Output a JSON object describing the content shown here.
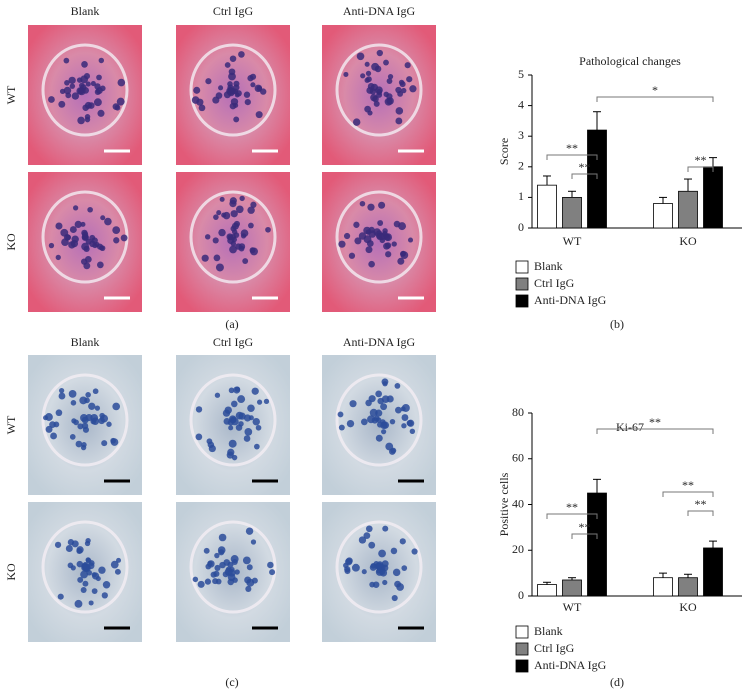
{
  "figure": {
    "panel_labels": [
      "(a)",
      "(b)",
      "(c)",
      "(d)"
    ],
    "micrographs": [
      {
        "columns": [
          "Blank",
          "Ctrl IgG",
          "Anti-DNA IgG"
        ],
        "rows": [
          "WT",
          "KO"
        ]
      },
      {
        "columns": [
          "Blank",
          "Ctrl IgG",
          "Anti-DNA IgG"
        ],
        "rows": [
          "WT",
          "KO"
        ]
      }
    ]
  },
  "chart_data": [
    {
      "type": "bar",
      "title": "Pathological changes",
      "y_label": "Score",
      "categories": [
        "WT",
        "KO"
      ],
      "series": [
        {
          "name": "Blank",
          "color": "#ffffff",
          "values": [
            1.4,
            0.8
          ],
          "errors": [
            0.3,
            0.2
          ]
        },
        {
          "name": "Ctrl IgG",
          "color": "#808080",
          "values": [
            1.0,
            1.2
          ],
          "errors": [
            0.2,
            0.4
          ]
        },
        {
          "name": "Anti-DNA IgG",
          "color": "#000000",
          "values": [
            3.2,
            2.0
          ],
          "errors": [
            0.6,
            0.3
          ]
        }
      ],
      "ylim": [
        0,
        5
      ],
      "yticks": [
        0,
        1,
        2,
        3,
        4,
        5
      ],
      "annotations": [
        "*",
        "**",
        "**",
        "**"
      ]
    },
    {
      "type": "bar",
      "title": "Ki-67",
      "y_label": "Positive cells",
      "categories": [
        "WT",
        "KO"
      ],
      "series": [
        {
          "name": "Blank",
          "color": "#ffffff",
          "values": [
            5,
            8
          ],
          "errors": [
            1,
            2
          ]
        },
        {
          "name": "Ctrl IgG",
          "color": "#808080",
          "values": [
            7,
            8
          ],
          "errors": [
            1,
            1.5
          ]
        },
        {
          "name": "Anti-DNA IgG",
          "color": "#000000",
          "values": [
            45,
            21
          ],
          "errors": [
            6,
            3
          ]
        }
      ],
      "ylim": [
        0,
        80
      ],
      "yticks": [
        0,
        20,
        40,
        60,
        80
      ],
      "annotations": [
        "**",
        "**",
        "**",
        "**",
        "**"
      ]
    }
  ]
}
